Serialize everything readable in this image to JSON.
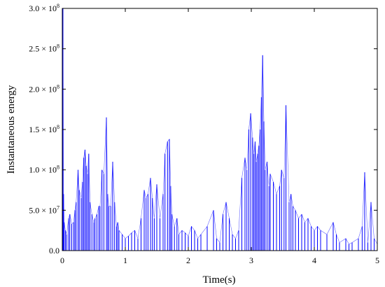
{
  "chart_data": {
    "type": "line",
    "xlabel": "Time(s)",
    "ylabel": "Instantaneous energy",
    "xlim": [
      0,
      5
    ],
    "ylim": [
      0,
      300000000
    ],
    "x_ticks": [
      0,
      1,
      2,
      3,
      4,
      5
    ],
    "x_tick_labels": [
      "0",
      "1",
      "2",
      "3",
      "4",
      "5"
    ],
    "y_ticks": [
      0,
      50000000,
      100000000,
      150000000,
      200000000,
      250000000,
      300000000
    ],
    "y_tick_labels": [
      {
        "mantissa": "0.0",
        "exponent": ""
      },
      {
        "mantissa": "5.0 × 10",
        "exponent": "7"
      },
      {
        "mantissa": "1.0 × 10",
        "exponent": "8"
      },
      {
        "mantissa": "1.5 × 10",
        "exponent": "8"
      },
      {
        "mantissa": "2.0 × 10",
        "exponent": "8"
      },
      {
        "mantissa": "2.5 × 10",
        "exponent": "8"
      },
      {
        "mantissa": "3.0 × 10",
        "exponent": "8"
      }
    ],
    "grid": false,
    "series_color": "#0000ff",
    "series": [
      {
        "x": [
          0.01,
          0.02,
          0.03,
          0.05,
          0.07,
          0.1,
          0.12,
          0.15,
          0.18,
          0.2,
          0.22,
          0.25,
          0.27,
          0.3,
          0.32,
          0.34,
          0.36,
          0.38,
          0.4,
          0.42,
          0.44,
          0.47,
          0.5,
          0.52,
          0.55,
          0.58,
          0.6,
          0.63,
          0.66,
          0.7,
          0.72,
          0.74,
          0.77,
          0.8,
          0.83,
          0.86,
          0.88,
          0.9,
          0.95,
          1.0,
          1.05,
          1.1,
          1.15,
          1.2,
          1.25,
          1.3,
          1.33,
          1.36,
          1.4,
          1.43,
          1.46,
          1.5,
          1.55,
          1.6,
          1.63,
          1.67,
          1.7,
          1.72,
          1.74,
          1.78,
          1.82,
          1.85,
          1.9,
          1.95,
          2.0,
          2.05,
          2.1,
          2.15,
          2.2,
          2.3,
          2.4,
          2.45,
          2.5,
          2.55,
          2.6,
          2.65,
          2.7,
          2.75,
          2.8,
          2.85,
          2.9,
          2.93,
          2.96,
          2.99,
          3.02,
          3.04,
          3.06,
          3.08,
          3.1,
          3.12,
          3.14,
          3.16,
          3.18,
          3.2,
          3.22,
          3.25,
          3.28,
          3.3,
          3.35,
          3.4,
          3.45,
          3.48,
          3.52,
          3.55,
          3.6,
          3.63,
          3.66,
          3.7,
          3.75,
          3.8,
          3.85,
          3.9,
          3.95,
          4.0,
          4.05,
          4.1,
          4.2,
          4.3,
          4.35,
          4.4,
          4.5,
          4.55,
          4.6,
          4.7,
          4.76,
          4.8,
          4.85,
          4.9,
          4.95,
          5.0
        ],
        "y": [
          300000000,
          70000000,
          35000000,
          25000000,
          20000000,
          40000000,
          45000000,
          33000000,
          35000000,
          50000000,
          60000000,
          100000000,
          75000000,
          65000000,
          85000000,
          115000000,
          125000000,
          105000000,
          95000000,
          120000000,
          60000000,
          45000000,
          35000000,
          40000000,
          45000000,
          55000000,
          55000000,
          100000000,
          95000000,
          165000000,
          70000000,
          55000000,
          55000000,
          110000000,
          60000000,
          30000000,
          35000000,
          25000000,
          20000000,
          15000000,
          18000000,
          22000000,
          25000000,
          15000000,
          40000000,
          75000000,
          65000000,
          70000000,
          90000000,
          65000000,
          40000000,
          82000000,
          40000000,
          70000000,
          120000000,
          135000000,
          138000000,
          80000000,
          45000000,
          30000000,
          40000000,
          20000000,
          25000000,
          22000000,
          18000000,
          30000000,
          25000000,
          15000000,
          20000000,
          30000000,
          50000000,
          15000000,
          10000000,
          45000000,
          60000000,
          40000000,
          20000000,
          15000000,
          25000000,
          90000000,
          115000000,
          100000000,
          150000000,
          170000000,
          140000000,
          120000000,
          135000000,
          110000000,
          120000000,
          130000000,
          150000000,
          190000000,
          242000000,
          160000000,
          100000000,
          110000000,
          80000000,
          95000000,
          85000000,
          70000000,
          80000000,
          100000000,
          90000000,
          180000000,
          60000000,
          70000000,
          55000000,
          50000000,
          40000000,
          45000000,
          35000000,
          40000000,
          30000000,
          25000000,
          30000000,
          25000000,
          20000000,
          35000000,
          20000000,
          10000000,
          15000000,
          8000000,
          10000000,
          15000000,
          30000000,
          97000000,
          10000000,
          60000000,
          15000000,
          8000000
        ]
      }
    ]
  }
}
